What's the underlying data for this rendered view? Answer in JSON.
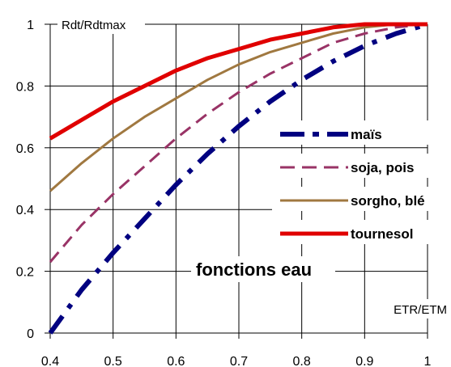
{
  "chart_data": {
    "type": "line",
    "title": "",
    "ylabel": "Rdt/Rdtmax",
    "xlabel": "ETR/ETM",
    "annotation": "fonctions eau",
    "xlim": [
      0.4,
      1.0
    ],
    "ylim": [
      0,
      1.0
    ],
    "xticks": [
      "0.4",
      "0.5",
      "0.6",
      "0.7",
      "0.8",
      "0.9",
      "1"
    ],
    "yticks": [
      "0",
      "0.2",
      "0.4",
      "0.6",
      "0.8",
      "1"
    ],
    "grid": true,
    "legend_position": "right",
    "series": [
      {
        "name": "maïs",
        "color": "#000080",
        "style": "dashdot",
        "x": [
          0.4,
          0.45,
          0.5,
          0.55,
          0.6,
          0.65,
          0.7,
          0.75,
          0.8,
          0.85,
          0.9,
          0.95,
          1.0
        ],
        "y": [
          0.0,
          0.14,
          0.26,
          0.37,
          0.48,
          0.58,
          0.67,
          0.75,
          0.82,
          0.88,
          0.93,
          0.97,
          1.0
        ]
      },
      {
        "name": "soja, pois",
        "color": "#993366",
        "style": "dashed",
        "x": [
          0.4,
          0.45,
          0.5,
          0.55,
          0.6,
          0.65,
          0.7,
          0.75,
          0.8,
          0.85,
          0.9,
          0.95,
          1.0
        ],
        "y": [
          0.23,
          0.35,
          0.45,
          0.54,
          0.63,
          0.71,
          0.78,
          0.84,
          0.89,
          0.94,
          0.97,
          0.99,
          1.0
        ]
      },
      {
        "name": "sorgho, blé",
        "color": "#A07840",
        "style": "solid",
        "x": [
          0.4,
          0.45,
          0.5,
          0.55,
          0.6,
          0.65,
          0.7,
          0.75,
          0.8,
          0.85,
          0.9,
          0.95,
          1.0
        ],
        "y": [
          0.46,
          0.55,
          0.63,
          0.7,
          0.76,
          0.82,
          0.87,
          0.91,
          0.94,
          0.97,
          0.99,
          1.0,
          1.0
        ]
      },
      {
        "name": "tournesol",
        "color": "#E00000",
        "style": "solid-thick",
        "x": [
          0.4,
          0.45,
          0.5,
          0.55,
          0.6,
          0.65,
          0.7,
          0.75,
          0.8,
          0.85,
          0.9,
          0.95,
          1.0
        ],
        "y": [
          0.63,
          0.69,
          0.75,
          0.8,
          0.85,
          0.89,
          0.92,
          0.95,
          0.97,
          0.99,
          1.0,
          1.0,
          1.0
        ]
      }
    ]
  }
}
